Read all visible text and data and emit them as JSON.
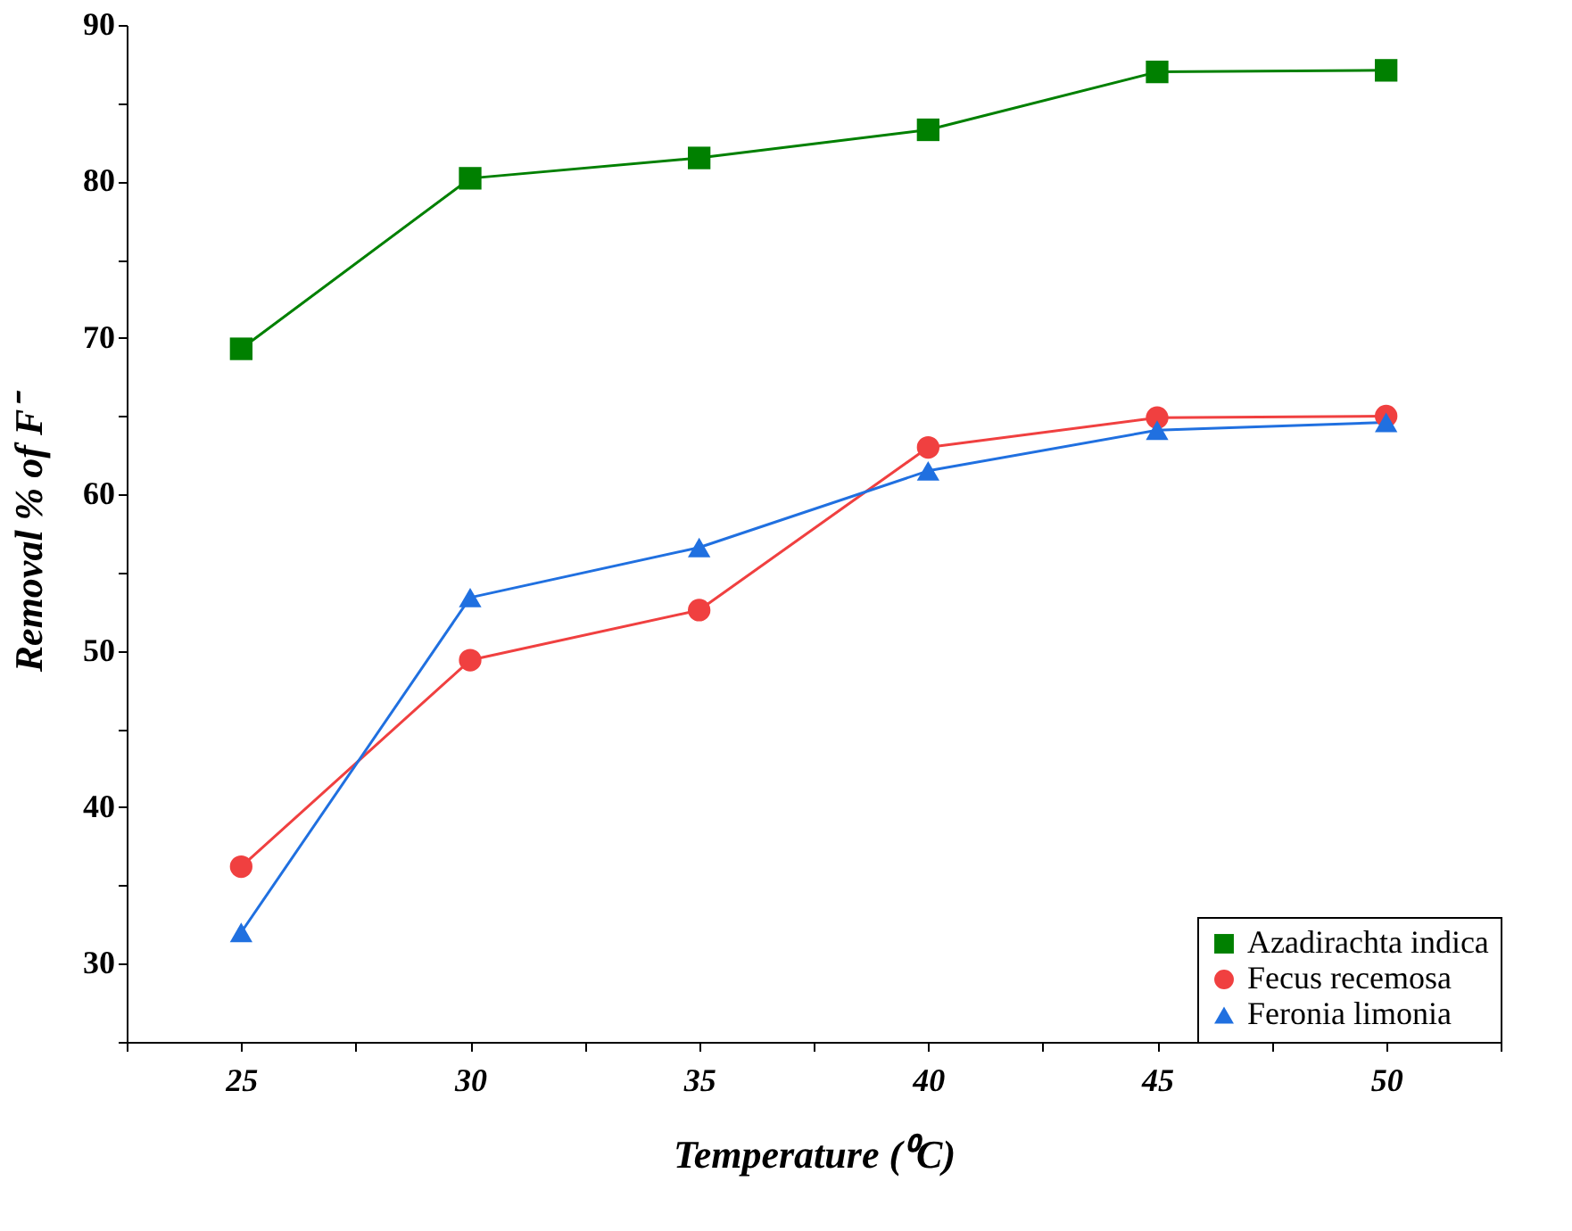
{
  "chart_data": {
    "type": "line",
    "xlabel": "Temperature (⁰C)",
    "ylabel": "Removal % of F⁻",
    "x": [
      25,
      30,
      35,
      40,
      45,
      50
    ],
    "series": [
      {
        "name": "Azadirachta indica",
        "color": "#008000",
        "marker": "square",
        "values": [
          69.3,
          80.2,
          81.5,
          83.3,
          87.0,
          87.1
        ]
      },
      {
        "name": "Fecus recemosa",
        "color": "#f04040",
        "marker": "circle",
        "values": [
          36.2,
          49.4,
          52.6,
          63.0,
          64.9,
          65.0
        ]
      },
      {
        "name": "Feronia limonia",
        "color": "#2070e0",
        "marker": "triangle",
        "values": [
          32.0,
          53.4,
          56.6,
          61.5,
          64.1,
          64.6
        ]
      }
    ],
    "xlim": [
      22.5,
      52.5
    ],
    "ylim": [
      25,
      90
    ],
    "xticks": [
      {
        "value": 22.5,
        "label": null
      },
      25,
      {
        "value": 27.5,
        "label": null
      },
      30,
      {
        "value": 32.5,
        "label": null
      },
      35,
      {
        "value": 37.5,
        "label": null
      },
      40,
      {
        "value": 42.5,
        "label": null
      },
      45,
      {
        "value": 47.5,
        "label": null
      },
      50,
      {
        "value": 52.5,
        "label": null
      }
    ],
    "yticks": [
      {
        "value": 25,
        "label": null
      },
      30,
      {
        "value": 35,
        "label": null
      },
      40,
      {
        "value": 45,
        "label": null
      },
      50,
      {
        "value": 55,
        "label": null
      },
      60,
      {
        "value": 65,
        "label": null
      },
      70,
      {
        "value": 75,
        "label": null
      },
      80,
      {
        "value": 85,
        "label": null
      },
      90
    ],
    "grid": false,
    "legend": "bottom right",
    "line_style": "solid"
  }
}
